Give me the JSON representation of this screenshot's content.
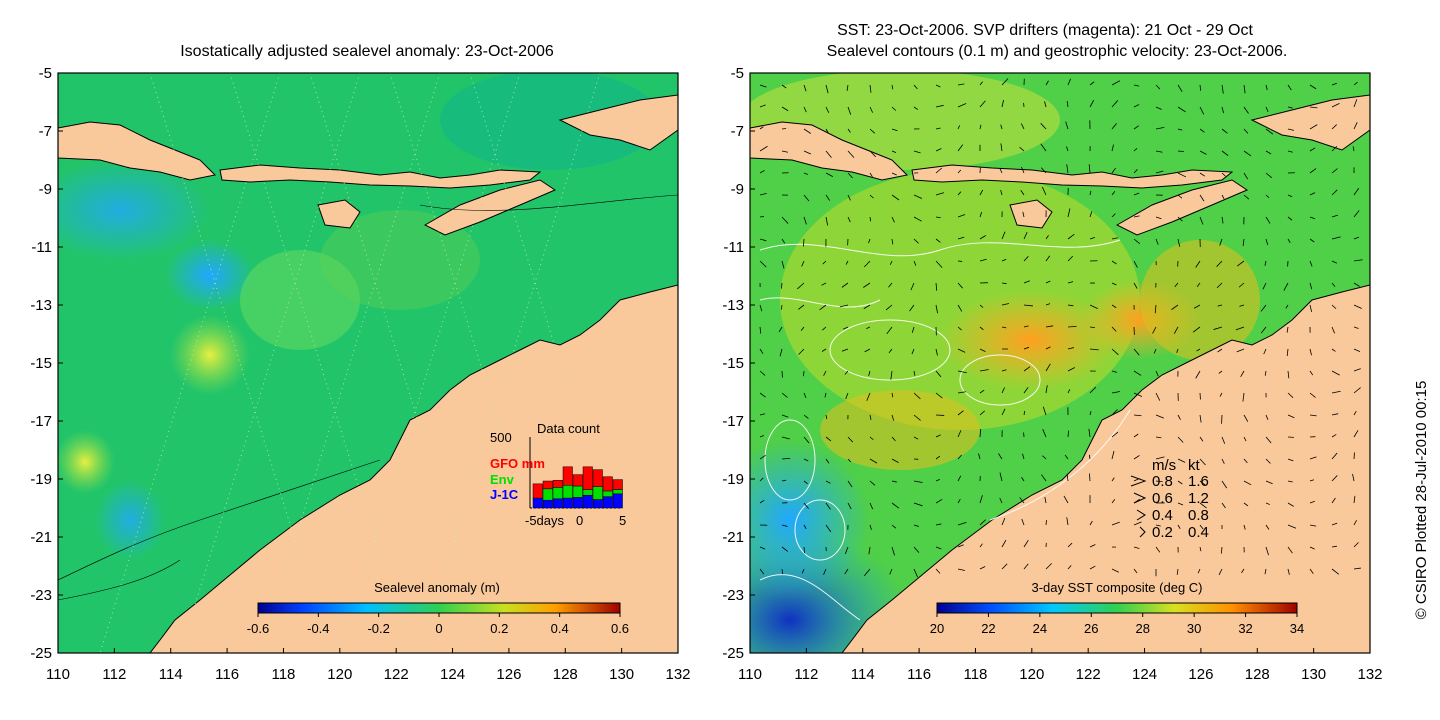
{
  "left_panel": {
    "title": "Isostatically adjusted sealevel anomaly: 23-Oct-2006",
    "x_ticks": [
      "110",
      "112",
      "114",
      "116",
      "118",
      "120",
      "122",
      "124",
      "126",
      "128",
      "130",
      "132"
    ],
    "y_ticks": [
      "-5",
      "-7",
      "-9",
      "-11",
      "-13",
      "-15",
      "-17",
      "-19",
      "-21",
      "-23",
      "-25"
    ],
    "colorbar": {
      "title": "Sealevel anomaly (m)",
      "ticks": [
        "-0.6",
        "-0.4",
        "-0.2",
        "0",
        "0.2",
        "0.4",
        "0.6"
      ]
    },
    "inset": {
      "title": "Data count",
      "ymax_label": "500",
      "x_ticks": [
        "-5days",
        "0",
        "5"
      ],
      "series": [
        {
          "name": "GFO mm",
          "color": "#ff0000"
        },
        {
          "name": "Env",
          "color": "#00e000"
        },
        {
          "name": "J-1C",
          "color": "#0000ff"
        }
      ],
      "bars": [
        {
          "j1c": 70,
          "env": 0,
          "gfo": 100
        },
        {
          "j1c": 55,
          "env": 80,
          "gfo": 55
        },
        {
          "j1c": 65,
          "env": 80,
          "gfo": 50
        },
        {
          "j1c": 70,
          "env": 90,
          "gfo": 130
        },
        {
          "j1c": 75,
          "env": 80,
          "gfo": 80
        },
        {
          "j1c": 90,
          "env": 40,
          "gfo": 160
        },
        {
          "j1c": 60,
          "env": 90,
          "gfo": 120
        },
        {
          "j1c": 80,
          "env": 40,
          "gfo": 100
        },
        {
          "j1c": 100,
          "env": 30,
          "gfo": 70
        }
      ]
    }
  },
  "right_panel": {
    "title_line1": "SST: 23-Oct-2006. SVP drifters (magenta): 21 Oct - 29 Oct",
    "title_line2": "Sealevel contours (0.1 m) and geostrophic velocity: 23-Oct-2006.",
    "x_ticks": [
      "110",
      "112",
      "114",
      "116",
      "118",
      "120",
      "122",
      "124",
      "126",
      "128",
      "130",
      "132"
    ],
    "y_ticks": [
      "-5",
      "-7",
      "-9",
      "-11",
      "-13",
      "-15",
      "-17",
      "-19",
      "-21",
      "-23",
      "-25"
    ],
    "colorbar": {
      "title": "3-day SST composite (deg C)",
      "ticks": [
        "20",
        "22",
        "24",
        "26",
        "28",
        "30",
        "32",
        "34"
      ]
    },
    "velocity_legend": {
      "header_ms": "m/s",
      "header_kt": "kt",
      "rows": [
        {
          "ms": "0.8",
          "kt": "1.6"
        },
        {
          "ms": "0.6",
          "kt": "1.2"
        },
        {
          "ms": "0.4",
          "kt": "0.8"
        },
        {
          "ms": "0.2",
          "kt": "0.4"
        }
      ]
    }
  },
  "credit": "© CSIRO Plotted 28-Jul-2010 00:15",
  "colors": {
    "land": "#f9c89b",
    "ocean_left": "#1ec76a",
    "ocean_right": "#4fd04a"
  }
}
